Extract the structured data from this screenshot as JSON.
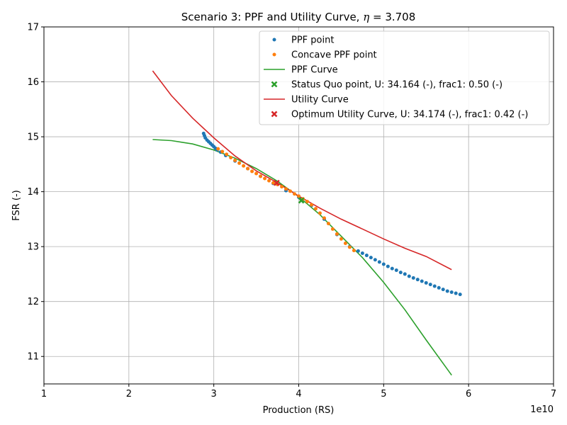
{
  "chart_data": {
    "type": "scatter",
    "title": "Scenario 3: PPF and Utility Curve, η = 3.708",
    "title_prefix": "Scenario 3: PPF and Utility Curve, ",
    "title_symbol": "η",
    "title_suffix": " = 3.708",
    "xlabel": "Production (RS)",
    "ylabel": "FSR (-)",
    "x_offset_label": "1e10",
    "xlim": [
      10000000000.0,
      70000000000.0
    ],
    "ylim": [
      10.5,
      17
    ],
    "xticks": [
      10000000000.0,
      20000000000.0,
      30000000000.0,
      40000000000.0,
      50000000000.0,
      60000000000.0,
      70000000000.0
    ],
    "xtick_labels": [
      "1",
      "2",
      "3",
      "4",
      "5",
      "6",
      "7"
    ],
    "yticks": [
      11,
      12,
      13,
      14,
      15,
      16,
      17
    ],
    "ytick_labels": [
      "11",
      "12",
      "13",
      "14",
      "15",
      "16",
      "17"
    ],
    "grid": true,
    "legend_position": "top-right",
    "series": [
      {
        "name": "PPF point",
        "kind": "points",
        "color": "#1f77b4",
        "x": [
          28800000000.0,
          28900000000.0,
          29000000000.0,
          29200000000.0,
          29400000000.0,
          29600000000.0,
          29800000000.0,
          30000000000.0,
          30200000000.0,
          30400000000.0,
          30800000000.0,
          31400000000.0,
          32500000000.0,
          34000000000.0,
          35500000000.0,
          37000000000.0,
          38500000000.0,
          40000000000.0,
          41500000000.0,
          43000000000.0,
          44500000000.0,
          46000000000.0,
          47000000000.0,
          47500000000.0,
          48000000000.0,
          48500000000.0,
          49000000000.0,
          49500000000.0,
          50000000000.0,
          50500000000.0,
          51000000000.0,
          51500000000.0,
          52000000000.0,
          52500000000.0,
          53000000000.0,
          53500000000.0,
          54000000000.0,
          54500000000.0,
          55000000000.0,
          55500000000.0,
          56000000000.0,
          56500000000.0,
          57000000000.0,
          57500000000.0,
          58000000000.0,
          58500000000.0,
          59000000000.0
        ],
        "y": [
          15.06,
          15.02,
          14.98,
          14.94,
          14.91,
          14.88,
          14.85,
          14.82,
          14.79,
          14.76,
          14.72,
          14.66,
          14.56,
          14.42,
          14.28,
          14.15,
          14.02,
          13.9,
          13.75,
          13.5,
          13.22,
          13.0,
          12.92,
          12.88,
          12.84,
          12.8,
          12.76,
          12.72,
          12.68,
          12.64,
          12.6,
          12.57,
          12.53,
          12.5,
          12.46,
          12.43,
          12.4,
          12.37,
          12.34,
          12.31,
          12.28,
          12.25,
          12.22,
          12.19,
          12.17,
          12.15,
          12.13
        ]
      },
      {
        "name": "Concave PPF point",
        "kind": "points",
        "color": "#ff7f0e",
        "x": [
          30500000000.0,
          31000000000.0,
          31500000000.0,
          32000000000.0,
          32500000000.0,
          33000000000.0,
          33500000000.0,
          34000000000.0,
          34500000000.0,
          35000000000.0,
          35500000000.0,
          36000000000.0,
          36500000000.0,
          37000000000.0,
          37500000000.0,
          38000000000.0,
          38500000000.0,
          39000000000.0,
          39500000000.0,
          40000000000.0,
          40500000000.0,
          41000000000.0,
          41500000000.0,
          42000000000.0,
          42500000000.0,
          43000000000.0,
          43500000000.0,
          44000000000.0,
          44500000000.0,
          45000000000.0,
          45500000000.0,
          46000000000.0,
          46500000000.0
        ],
        "y": [
          14.78,
          14.73,
          14.68,
          14.62,
          14.57,
          14.52,
          14.47,
          14.42,
          14.37,
          14.33,
          14.28,
          14.24,
          14.2,
          14.16,
          14.13,
          14.09,
          14.05,
          14.01,
          13.96,
          13.92,
          13.87,
          13.82,
          13.76,
          13.69,
          13.61,
          13.52,
          13.42,
          13.32,
          13.23,
          13.14,
          13.06,
          12.99,
          12.93
        ]
      },
      {
        "name": "PPF Curve",
        "kind": "line",
        "color": "#2ca02c",
        "x": [
          22800000000.0,
          25000000000.0,
          27500000000.0,
          30000000000.0,
          32500000000.0,
          35000000000.0,
          37500000000.0,
          40000000000.0,
          42500000000.0,
          45000000000.0,
          47500000000.0,
          50000000000.0,
          52500000000.0,
          55000000000.0,
          58000000000.0
        ],
        "y": [
          14.95,
          14.93,
          14.87,
          14.76,
          14.61,
          14.42,
          14.19,
          13.91,
          13.58,
          13.19,
          12.8,
          12.35,
          11.85,
          11.3,
          10.66
        ]
      },
      {
        "name": "Status Quo point, U: 34.164 (-), frac1: 0.50 (-)",
        "kind": "marker",
        "color": "#2ca02c",
        "x": [
          40300000000.0
        ],
        "y": [
          13.84
        ]
      },
      {
        "name": "Utility Curve",
        "kind": "line",
        "color": "#d62728",
        "x": [
          22800000000.0,
          25000000000.0,
          27500000000.0,
          30000000000.0,
          32500000000.0,
          35000000000.0,
          37500000000.0,
          40000000000.0,
          42500000000.0,
          45000000000.0,
          47500000000.0,
          50000000000.0,
          52500000000.0,
          55000000000.0,
          58000000000.0
        ],
        "y": [
          16.2,
          15.75,
          15.34,
          14.98,
          14.65,
          14.38,
          14.16,
          13.92,
          13.7,
          13.5,
          13.32,
          13.14,
          12.97,
          12.82,
          12.58
        ]
      },
      {
        "name": "Optimum Utility Curve, U: 34.174 (-), frac1: 0.42 (-)",
        "kind": "marker",
        "color": "#d62728",
        "x": [
          37400000000.0
        ],
        "y": [
          14.16
        ]
      }
    ]
  }
}
